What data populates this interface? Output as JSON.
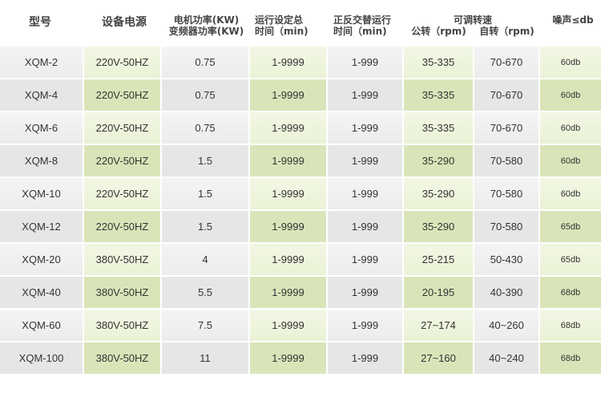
{
  "headers": {
    "model": "型号",
    "power": "设备电源",
    "kw1": "电机功率(KW)",
    "kw2": "变频器功率(KW)",
    "time1a": "运行设定总",
    "time1b": "时间（min)",
    "time2a": "正反交替运行",
    "time2b": "时间（min)",
    "speed": "可调转速",
    "rev": "公转（rpm)",
    "rot": "自转（rpm)",
    "noise": "噪声≤db"
  },
  "rows": [
    [
      "XQM-2",
      "220V-50HZ",
      "0.75",
      "1-9999",
      "1-999",
      "35-335",
      "70-670",
      "60db"
    ],
    [
      "XQM-4",
      "220V-50HZ",
      "0.75",
      "1-9999",
      "1-999",
      "35-335",
      "70-670",
      "60db"
    ],
    [
      "XQM-6",
      "220V-50HZ",
      "0.75",
      "1-9999",
      "1-999",
      "35-335",
      "70-670",
      "60db"
    ],
    [
      "XQM-8",
      "220V-50HZ",
      "1.5",
      "1-9999",
      "1-999",
      "35-290",
      "70-580",
      "60db"
    ],
    [
      "XQM-10",
      "220V-50HZ",
      "1.5",
      "1-9999",
      "1-999",
      "35-290",
      "70-580",
      "60db"
    ],
    [
      "XQM-12",
      "220V-50HZ",
      "1.5",
      "1-9999",
      "1-999",
      "35-290",
      "70-580",
      "65db"
    ],
    [
      "XQM-20",
      "380V-50HZ",
      "4",
      "1-9999",
      "1-999",
      "25-215",
      "50-430",
      "65db"
    ],
    [
      "XQM-40",
      "380V-50HZ",
      "5.5",
      "1-9999",
      "1-999",
      "20-195",
      "40-390",
      "68db"
    ],
    [
      "XQM-60",
      "380V-50HZ",
      "7.5",
      "1-9999",
      "1-999",
      "27~174",
      "40~260",
      "68db"
    ],
    [
      "XQM-100",
      "380V-50HZ",
      "11",
      "1-9999",
      "1-999",
      "27~160",
      "40~240",
      "68db"
    ]
  ]
}
